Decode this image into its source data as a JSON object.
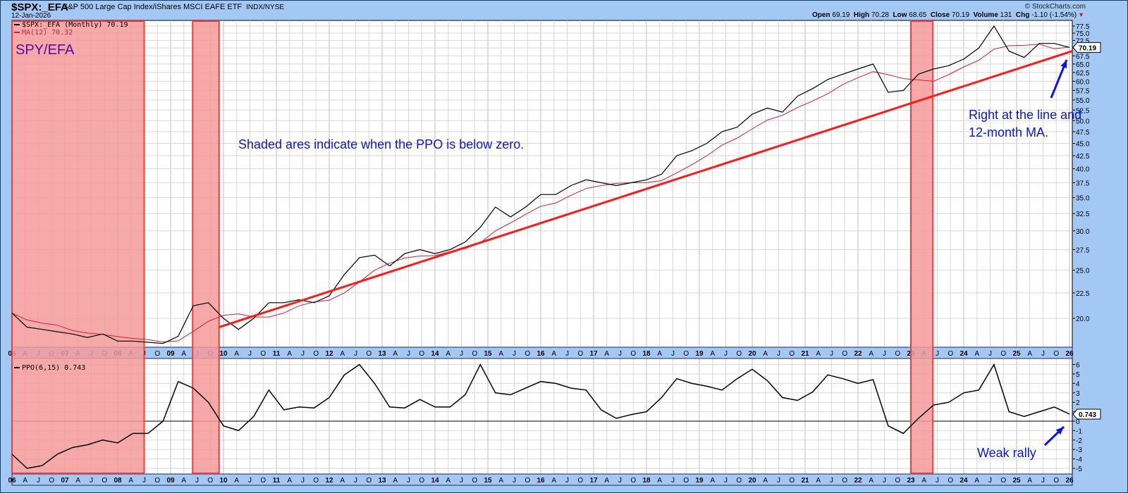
{
  "header": {
    "symbol": "$SPX:_EFA",
    "name": "S&P 500 Large Cap Index/iShares MSCI EAFE ETF",
    "exchange": "INDX/NYSE",
    "date": "12-Jan-2026",
    "copyright": "© StockCharts.com",
    "ohlc": {
      "open_label": "Open",
      "open": "69.19",
      "high_label": "High",
      "high": "70.28",
      "low_label": "Low",
      "low": "68.65",
      "close_label": "Close",
      "close": "70.19",
      "volume_label": "Volume",
      "volume": "131",
      "chg_label": "Chg",
      "chg": "-1.10 (-1.54%)"
    }
  },
  "price_panel": {
    "legend_price": "$SPX:_EFA (Monthly) 70.19",
    "legend_ma": "MA(12) 70.32",
    "title_label": "SPY/EFA",
    "last_value_tag": "70.19",
    "annotation_shaded": "Shaded ares indicate when the PPO is below zero.",
    "annotation_line1": "Right at the line and",
    "annotation_line2": "12-month MA."
  },
  "ppo_panel": {
    "legend": "PPO(6,15) 0.743",
    "last_value_tag": "0.743",
    "annotation": "Weak rally"
  },
  "colors": {
    "background": "#a4c8f4",
    "plot_bg": "#ffffff",
    "grid": "#d8d8d8",
    "price_line": "#000000",
    "ma_line": "#d21e3c",
    "trendline": "#ff1a1a",
    "shade_fill": "#f49a9a",
    "shade_border": "#f03c3c",
    "annotation": "#0a14e6",
    "title_label": "#5a0aa0"
  },
  "chart_data": [
    {
      "type": "line",
      "title": "$SPX:_EFA (Monthly) with MA(12)",
      "xlabel": "",
      "ylabel": "",
      "y_scale": "log",
      "ylim": [
        17.5,
        78
      ],
      "y_ticks": [
        20.0,
        22.5,
        25.0,
        27.5,
        30.0,
        32.5,
        35.0,
        37.5,
        40.0,
        42.5,
        45.0,
        47.5,
        50.0,
        52.5,
        55.0,
        57.5,
        60.0,
        62.5,
        65.0,
        67.5,
        70.0,
        72.5,
        75.0,
        77.5
      ],
      "x_tick_labels": [
        "06",
        "A",
        "J",
        "O",
        "07",
        "A",
        "J",
        "O",
        "08",
        "A",
        "J",
        "O",
        "09",
        "A",
        "J",
        "O",
        "10",
        "A",
        "J",
        "O",
        "11",
        "A",
        "J",
        "O",
        "12",
        "A",
        "J",
        "O",
        "13",
        "A",
        "J",
        "O",
        "14",
        "A",
        "J",
        "O",
        "15",
        "A",
        "J",
        "O",
        "16",
        "A",
        "J",
        "O",
        "17",
        "A",
        "J",
        "O",
        "18",
        "A",
        "J",
        "O",
        "19",
        "A",
        "J",
        "O",
        "20",
        "A",
        "J",
        "O",
        "21",
        "A",
        "J",
        "O",
        "22",
        "A",
        "J",
        "O",
        "23",
        "A",
        "J",
        "O",
        "24",
        "A",
        "J",
        "O",
        "25",
        "A",
        "J",
        "O",
        "26"
      ],
      "grid": true,
      "x_years": [
        2006,
        2007,
        2008,
        2009,
        2010,
        2011,
        2012,
        2013,
        2014,
        2015,
        2016,
        2017,
        2018,
        2019,
        2020,
        2021,
        2022,
        2023,
        2024,
        2025,
        2026
      ],
      "series": [
        {
          "name": "$SPX:_EFA (Monthly)",
          "color": "#000000",
          "values_quarterly_approx": [
            20.5,
            19.2,
            19.0,
            18.8,
            18.6,
            18.3,
            18.6,
            18.0,
            18.0,
            17.9,
            17.8,
            18.4,
            21.2,
            21.5,
            20.0,
            19.0,
            20.0,
            21.5,
            21.5,
            21.8,
            21.5,
            22.2,
            24.5,
            26.5,
            26.8,
            25.5,
            27.0,
            27.5,
            27.0,
            27.5,
            28.5,
            30.5,
            33.5,
            32.0,
            33.5,
            35.5,
            35.5,
            37.0,
            38.0,
            37.5,
            37.0,
            37.5,
            38.0,
            39.0,
            42.5,
            43.5,
            45.0,
            47.5,
            48.5,
            51.5,
            53.0,
            52.0,
            56.0,
            58.0,
            60.5,
            62.0,
            63.5,
            65.0,
            57.0,
            57.5,
            62.0,
            63.5,
            64.5,
            66.5,
            70.0,
            77.5,
            69.0,
            67.0,
            71.5,
            71.5,
            70.19
          ],
          "last": 70.19
        },
        {
          "name": "MA(12)",
          "color": "#d21e3c",
          "last": 70.32
        },
        {
          "name": "Trendline",
          "color": "#ff1a1a",
          "from": {
            "date": "2009-12",
            "value": 19.2
          },
          "to": {
            "date": "2026-01",
            "value": 69.0
          }
        }
      ],
      "shaded_regions": [
        {
          "from": "2006-01",
          "to": "2008-06",
          "meaning": "PPO below zero"
        },
        {
          "from": "2009-06",
          "to": "2009-11",
          "meaning": "PPO below zero"
        },
        {
          "from": "2023-01",
          "to": "2023-05",
          "meaning": "PPO below zero"
        }
      ],
      "annotations": [
        "SPY/EFA",
        "Shaded ares indicate when the PPO is below zero.",
        "Right at the line and 12-month MA."
      ]
    },
    {
      "type": "line",
      "title": "PPO(6,15)",
      "ylim": [
        -5.5,
        6.5
      ],
      "y_ticks": [
        -5,
        -4,
        -3,
        -2,
        -1,
        0,
        1,
        2,
        3,
        4,
        5,
        6
      ],
      "grid": true,
      "series": [
        {
          "name": "PPO(6,15)",
          "color": "#000000",
          "values_quarterly_approx": [
            -3.5,
            -5.0,
            -4.7,
            -3.5,
            -2.8,
            -2.5,
            -2.0,
            -2.3,
            -1.3,
            -1.3,
            0.0,
            4.2,
            3.5,
            2.0,
            -0.5,
            -1.0,
            0.5,
            3.3,
            1.2,
            1.5,
            1.4,
            2.5,
            4.9,
            6.0,
            4.0,
            1.5,
            1.4,
            2.3,
            1.5,
            1.5,
            2.8,
            6.0,
            3.0,
            2.8,
            3.5,
            4.2,
            4.0,
            3.5,
            3.3,
            1.2,
            0.3,
            0.7,
            1.0,
            2.5,
            4.5,
            4.0,
            3.7,
            3.3,
            4.5,
            5.5,
            4.3,
            2.5,
            2.2,
            3.1,
            4.9,
            4.5,
            4.0,
            4.4,
            -0.5,
            -1.3,
            0.3,
            1.7,
            2.0,
            3.0,
            3.3,
            6.0,
            1.0,
            0.5,
            1.0,
            1.5,
            0.743
          ],
          "last": 0.743
        }
      ],
      "annotations": [
        "Weak rally"
      ]
    }
  ]
}
